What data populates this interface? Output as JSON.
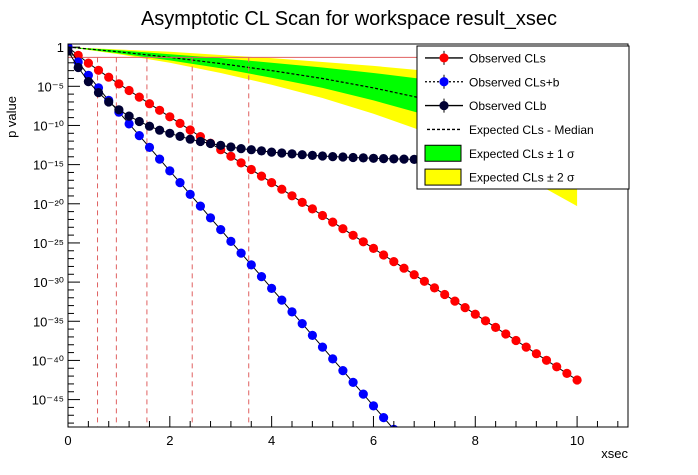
{
  "chart_data": {
    "type": "scatter",
    "title": "Asymptotic CL Scan for workspace result_xsec",
    "xlabel": "xsec",
    "ylabel": "p value",
    "xlim": [
      0,
      11
    ],
    "ylim_log10": [
      -48.5,
      0.4
    ],
    "log_y": true,
    "grid": false,
    "legend_position": "top-right",
    "x_ticks": [
      {
        "value": 0,
        "label": "0"
      },
      {
        "value": 2,
        "label": "2"
      },
      {
        "value": 4,
        "label": "4"
      },
      {
        "value": 6,
        "label": "6"
      },
      {
        "value": 8,
        "label": "8"
      },
      {
        "value": 10,
        "label": "10"
      }
    ],
    "y_ticks": [
      {
        "exp": 0,
        "label": "1"
      },
      {
        "exp": -5,
        "label": "10⁻⁵"
      },
      {
        "exp": -10,
        "label": "10⁻¹⁰"
      },
      {
        "exp": -15,
        "label": "10⁻¹⁵"
      },
      {
        "exp": -20,
        "label": "10⁻²⁰"
      },
      {
        "exp": -25,
        "label": "10⁻²⁵"
      },
      {
        "exp": -30,
        "label": "10⁻³⁰"
      },
      {
        "exp": -35,
        "label": "10⁻³⁵"
      },
      {
        "exp": -40,
        "label": "10⁻⁴⁰"
      },
      {
        "exp": -45,
        "label": "10⁻⁴⁵"
      }
    ],
    "legend": [
      {
        "key": "cls",
        "label": "Observed CLs",
        "style": "marker",
        "color": "#ff0000",
        "dash": ""
      },
      {
        "key": "clsb",
        "label": "Observed CLs+b",
        "style": "marker",
        "color": "#0000ff",
        "dash": "2,2"
      },
      {
        "key": "clb",
        "label": "Observed CLb",
        "style": "marker",
        "color": "#000033",
        "dash": ""
      },
      {
        "key": "median",
        "label": "Expected CLs - Median",
        "style": "line",
        "color": "#000000",
        "dash": "3,2"
      },
      {
        "key": "band1",
        "label": "Expected CLs ± 1 σ",
        "style": "box",
        "color": "#00ff00",
        "dash": ""
      },
      {
        "key": "band2",
        "label": "Expected CLs ± 2 σ",
        "style": "box",
        "color": "#ffff00",
        "dash": ""
      }
    ],
    "series": [
      {
        "name": "Observed CLs",
        "color": "#ff0000",
        "x": [
          0,
          0.2,
          0.4,
          0.6,
          0.8,
          1.0,
          1.2,
          1.4,
          1.6,
          1.8,
          2.0,
          2.2,
          2.4,
          2.6,
          2.8,
          3.0,
          3.2,
          3.4,
          3.6,
          3.8,
          4.0,
          4.2,
          4.4,
          4.6,
          4.8,
          5.0,
          5.2,
          5.4,
          5.6,
          5.8,
          6.0,
          6.2,
          6.4,
          6.6,
          6.8,
          7.0,
          7.2,
          7.4,
          7.6,
          7.8,
          8.0,
          8.2,
          8.4,
          8.6,
          8.8,
          9.0,
          9.2,
          9.4,
          9.6,
          9.8,
          10.0
        ],
        "log10_y": [
          0,
          -1.06,
          -2.04,
          -2.96,
          -3.84,
          -4.7,
          -5.54,
          -6.38,
          -7.22,
          -8.06,
          -8.9,
          -9.74,
          -10.58,
          -11.42,
          -12.26,
          -13.1,
          -13.94,
          -14.78,
          -15.62,
          -16.46,
          -17.3,
          -18.14,
          -18.98,
          -19.82,
          -20.66,
          -21.5,
          -22.34,
          -23.18,
          -24.02,
          -24.86,
          -25.7,
          -26.54,
          -27.38,
          -28.22,
          -29.06,
          -29.9,
          -30.74,
          -31.58,
          -32.42,
          -33.26,
          -34.1,
          -34.94,
          -35.78,
          -36.62,
          -37.46,
          -38.3,
          -39.14,
          -39.98,
          -40.82,
          -41.66,
          -42.5
        ]
      },
      {
        "name": "Observed CLs+b",
        "color": "#0000ff",
        "x": [
          0,
          0.2,
          0.4,
          0.6,
          0.8,
          1.0,
          1.2,
          1.4,
          1.6,
          1.8,
          2.0,
          2.2,
          2.4,
          2.6,
          2.8,
          3.0,
          3.2,
          3.4,
          3.6,
          3.8,
          4.0,
          4.2,
          4.4,
          4.6,
          4.8,
          5.0,
          5.2,
          5.4,
          5.6,
          5.8,
          6.0,
          6.2,
          6.4,
          6.6,
          6.8,
          7.0,
          7.2
        ],
        "log10_y": [
          0,
          -1.9,
          -3.6,
          -5.2,
          -6.8,
          -8.3,
          -9.8,
          -11.3,
          -12.8,
          -14.3,
          -15.8,
          -17.3,
          -18.8,
          -20.3,
          -21.8,
          -23.3,
          -24.8,
          -26.3,
          -27.8,
          -29.3,
          -30.8,
          -32.3,
          -33.8,
          -35.3,
          -36.8,
          -38.3,
          -39.8,
          -41.3,
          -42.8,
          -44.3,
          -45.8,
          -47.3,
          -48.8,
          -50.3,
          -51.8,
          -53.3,
          -54.8
        ]
      },
      {
        "name": "Observed CLb",
        "color": "#000033",
        "x": [
          0,
          0.2,
          0.4,
          0.6,
          0.8,
          1.0,
          1.2,
          1.4,
          1.6,
          1.8,
          2.0,
          2.2,
          2.4,
          2.6,
          2.8,
          3.0,
          3.2,
          3.4,
          3.6,
          3.8,
          4.0,
          4.2,
          4.4,
          4.6,
          4.8,
          5.0,
          5.2,
          5.4,
          5.6,
          5.8,
          6.0,
          6.2,
          6.4,
          6.6,
          6.8,
          7.0
        ],
        "log10_y": [
          -0.5,
          -2.6,
          -4.4,
          -5.8,
          -7.0,
          -8.0,
          -8.8,
          -9.5,
          -10.1,
          -10.6,
          -11.0,
          -11.4,
          -11.75,
          -12.05,
          -12.3,
          -12.55,
          -12.75,
          -12.95,
          -13.1,
          -13.25,
          -13.4,
          -13.52,
          -13.63,
          -13.73,
          -13.82,
          -13.9,
          -13.97,
          -14.03,
          -14.09,
          -14.14,
          -14.19,
          -14.23,
          -14.27,
          -14.3,
          -14.33,
          -14.36
        ]
      }
    ],
    "expected": {
      "x": [
        0,
        1,
        2,
        3,
        4,
        5,
        6,
        7,
        8,
        9,
        10
      ],
      "median_log10": [
        0,
        -0.6,
        -1.3,
        -2.1,
        -3.0,
        -4.0,
        -5.2,
        -6.6,
        -8.3,
        -10.3,
        -12.6
      ],
      "minus2_log10": [
        0,
        -0.9,
        -2.0,
        -3.3,
        -4.8,
        -6.5,
        -8.5,
        -10.8,
        -13.5,
        -16.7,
        -20.3
      ],
      "minus1_log10": [
        0,
        -0.8,
        -1.7,
        -2.7,
        -3.9,
        -5.2,
        -6.8,
        -8.6,
        -10.8,
        -13.3,
        -16.2
      ],
      "plus1_log10": [
        0,
        -0.4,
        -0.9,
        -1.4,
        -2.0,
        -2.6,
        -3.3,
        -4.1,
        -5.0,
        -6.0,
        -7.1
      ],
      "plus2_log10": [
        0,
        -0.3,
        -0.6,
        -1.0,
        -1.4,
        -1.9,
        -2.4,
        -3.0,
        -3.7,
        -4.4,
        -5.2
      ]
    },
    "reference_line_log10": -1.3,
    "vertical_lines_x": [
      0.58,
      0.95,
      1.55,
      2.44,
      3.55
    ]
  }
}
